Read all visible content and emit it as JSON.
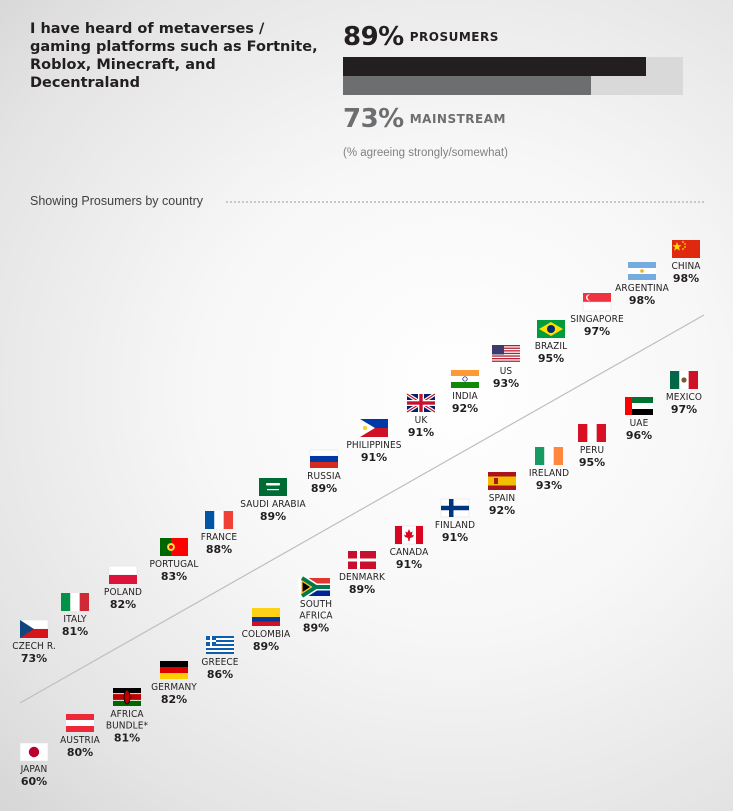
{
  "header": {
    "question": "I have heard of metaverses / gaming platforms such as Fortnite, Roblox, Minecraft, and Decentraland",
    "prosumers": {
      "value": 89,
      "pct_label": "89%",
      "label": "PROSUMERS"
    },
    "mainstream": {
      "value": 73,
      "pct_label": "73%",
      "label": "MAINSTREAM"
    },
    "note": "(% agreeing strongly/somewhat)",
    "section_label": "Showing Prosumers by country"
  },
  "colors": {
    "prosumers_bar": "#231f20",
    "mainstream_bar": "#6d6e70",
    "bar_track": "#d9d9da",
    "divider": "#bcbec0"
  },
  "chart_data": {
    "type": "scatter",
    "title": "I have heard of metaverses / gaming platforms such as Fortnite, Roblox, Minecraft, and Decentraland",
    "unit": "% agreeing strongly/somewhat",
    "series": [
      {
        "name": "Prosumers",
        "points": [
          {
            "country": [
              "JAPAN"
            ],
            "value": 60,
            "label": "60%",
            "flag": "japan-flag"
          },
          {
            "country": [
              "AUSTRIA"
            ],
            "value": 80,
            "label": "80%",
            "flag": "austria-flag"
          },
          {
            "country": [
              "AFRICA",
              "BUNDLE*"
            ],
            "value": 81,
            "label": "81%",
            "flag": "kenya-flag"
          },
          {
            "country": [
              "GERMANY"
            ],
            "value": 82,
            "label": "82%",
            "flag": "germany-flag"
          },
          {
            "country": [
              "GREECE"
            ],
            "value": 86,
            "label": "86%",
            "flag": "greece-flag"
          },
          {
            "country": [
              "COLOMBIA"
            ],
            "value": 89,
            "label": "89%",
            "flag": "colombia-flag"
          },
          {
            "country": [
              "SOUTH",
              "AFRICA"
            ],
            "value": 89,
            "label": "89%",
            "flag": "south-africa-flag"
          },
          {
            "country": [
              "DENMARK"
            ],
            "value": 89,
            "label": "89%",
            "flag": "denmark-flag"
          },
          {
            "country": [
              "CANADA"
            ],
            "value": 91,
            "label": "91%",
            "flag": "canada-flag"
          },
          {
            "country": [
              "FINLAND"
            ],
            "value": 91,
            "label": "91%",
            "flag": "finland-flag"
          },
          {
            "country": [
              "SPAIN"
            ],
            "value": 92,
            "label": "92%",
            "flag": "spain-flag"
          },
          {
            "country": [
              "IRELAND"
            ],
            "value": 93,
            "label": "93%",
            "flag": "ireland-flag"
          },
          {
            "country": [
              "PERU"
            ],
            "value": 95,
            "label": "95%",
            "flag": "peru-flag"
          },
          {
            "country": [
              "UAE"
            ],
            "value": 96,
            "label": "96%",
            "flag": "uae-flag"
          },
          {
            "country": [
              "MEXICO"
            ],
            "value": 97,
            "label": "97%",
            "flag": "mexico-flag"
          },
          {
            "country": [
              "CZECH R."
            ],
            "value": 73,
            "label": "73%",
            "flag": "czech-flag"
          },
          {
            "country": [
              "ITALY"
            ],
            "value": 81,
            "label": "81%",
            "flag": "italy-flag"
          },
          {
            "country": [
              "POLAND"
            ],
            "value": 82,
            "label": "82%",
            "flag": "poland-flag"
          },
          {
            "country": [
              "PORTUGAL"
            ],
            "value": 83,
            "label": "83%",
            "flag": "portugal-flag"
          },
          {
            "country": [
              "FRANCE"
            ],
            "value": 88,
            "label": "88%",
            "flag": "france-flag"
          },
          {
            "country": [
              "SAUDI ARABIA"
            ],
            "value": 89,
            "label": "89%",
            "flag": "saudi-arabia-flag"
          },
          {
            "country": [
              "RUSSIA"
            ],
            "value": 89,
            "label": "89%",
            "flag": "russia-flag"
          },
          {
            "country": [
              "PHILIPPINES"
            ],
            "value": 91,
            "label": "91%",
            "flag": "philippines-flag"
          },
          {
            "country": [
              "UK"
            ],
            "value": 91,
            "label": "91%",
            "flag": "uk-flag"
          },
          {
            "country": [
              "INDIA"
            ],
            "value": 92,
            "label": "92%",
            "flag": "india-flag"
          },
          {
            "country": [
              "US"
            ],
            "value": 93,
            "label": "93%",
            "flag": "us-flag"
          },
          {
            "country": [
              "BRAZIL"
            ],
            "value": 95,
            "label": "95%",
            "flag": "brazil-flag"
          },
          {
            "country": [
              "SINGAPORE"
            ],
            "value": 97,
            "label": "97%",
            "flag": "singapore-flag"
          },
          {
            "country": [
              "ARGENTINA"
            ],
            "value": 98,
            "label": "98%",
            "flag": "argentina-flag"
          },
          {
            "country": [
              "CHINA"
            ],
            "value": 98,
            "label": "98%",
            "flag": "china-flag"
          }
        ]
      }
    ]
  }
}
